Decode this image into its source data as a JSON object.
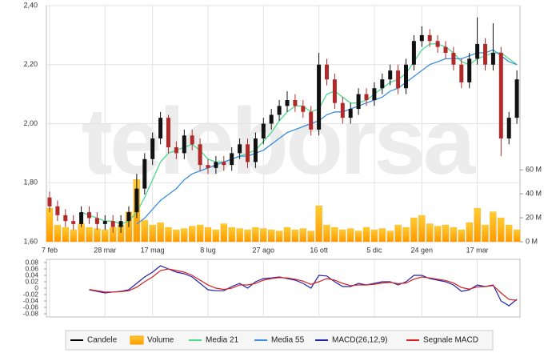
{
  "chart_data": [
    {
      "type": "candlestick",
      "watermark": "teleborsa",
      "categories": [
        "7 feb",
        null,
        null,
        null,
        null,
        null,
        null,
        "28 mar",
        null,
        null,
        null,
        null,
        null,
        "17 mag",
        null,
        null,
        null,
        null,
        null,
        null,
        "8 lug",
        null,
        null,
        null,
        null,
        null,
        null,
        "27 ago",
        null,
        null,
        null,
        null,
        null,
        null,
        "16 ott",
        null,
        null,
        null,
        null,
        null,
        null,
        "5 dic",
        null,
        null,
        null,
        null,
        null,
        "24 gen",
        null,
        null,
        null,
        null,
        null,
        null,
        "17 mar",
        null,
        null,
        null,
        null,
        null
      ],
      "ylim": [
        1.6,
        2.4
      ],
      "yticks": [
        {
          "value": 1.6,
          "label": "1,60"
        },
        {
          "value": 1.8,
          "label": "1,80"
        },
        {
          "value": 2.0,
          "label": "2,00"
        },
        {
          "value": 2.2,
          "label": "2,20"
        },
        {
          "value": 2.4,
          "label": "2,40"
        }
      ],
      "y2lim": [
        0,
        197
      ],
      "y2ticks": [
        {
          "value": 0,
          "label": "0 M"
        },
        {
          "value": 20,
          "label": "20 M"
        },
        {
          "value": 40,
          "label": "40 M"
        },
        {
          "value": 60,
          "label": "60 M"
        }
      ],
      "grid": true,
      "series": [
        {
          "name": "Candele",
          "type": "candlestick",
          "color": "#000000",
          "up_color": "#111111",
          "down_color": "#b02a2a",
          "open": [
            1.75,
            1.72,
            1.69,
            1.67,
            1.66,
            1.7,
            1.68,
            1.66,
            1.67,
            1.65,
            1.67,
            1.7,
            1.78,
            1.88,
            1.95,
            2.02,
            1.92,
            1.9,
            1.96,
            1.93,
            1.86,
            1.85,
            1.87,
            1.86,
            1.9,
            1.93,
            1.87,
            1.95,
            2.0,
            2.03,
            2.06,
            2.08,
            2.06,
            2.04,
            1.98,
            2.2,
            2.15,
            2.07,
            2.02,
            2.05,
            2.1,
            2.08,
            2.12,
            2.15,
            2.18,
            2.12,
            2.2,
            2.28,
            2.3,
            2.28,
            2.26,
            2.24,
            2.2,
            2.14,
            2.22,
            2.27,
            2.2,
            2.24,
            1.95,
            2.02
          ],
          "high": [
            1.77,
            1.74,
            1.71,
            1.69,
            1.72,
            1.72,
            1.7,
            1.69,
            1.69,
            1.69,
            1.72,
            1.83,
            1.9,
            1.97,
            2.04,
            2.03,
            1.94,
            1.98,
            1.98,
            1.95,
            1.88,
            1.89,
            1.89,
            1.92,
            1.95,
            1.95,
            1.97,
            2.02,
            2.05,
            2.08,
            2.11,
            2.1,
            2.08,
            2.06,
            2.24,
            2.22,
            2.17,
            2.09,
            2.07,
            2.12,
            2.12,
            2.14,
            2.17,
            2.2,
            2.2,
            2.22,
            2.3,
            2.33,
            2.32,
            2.3,
            2.28,
            2.26,
            2.22,
            2.24,
            2.36,
            2.29,
            2.34,
            2.26,
            2.04,
            2.18
          ],
          "low": [
            1.7,
            1.67,
            1.65,
            1.64,
            1.65,
            1.66,
            1.64,
            1.64,
            1.63,
            1.63,
            1.65,
            1.68,
            1.76,
            1.86,
            1.93,
            1.9,
            1.88,
            1.88,
            1.91,
            1.84,
            1.83,
            1.83,
            1.84,
            1.84,
            1.88,
            1.85,
            1.85,
            1.93,
            1.98,
            2.01,
            2.04,
            2.04,
            2.02,
            1.96,
            1.96,
            2.13,
            2.05,
            2.0,
            2.0,
            2.03,
            2.06,
            2.06,
            2.1,
            2.13,
            2.1,
            2.1,
            2.18,
            2.26,
            2.26,
            2.24,
            2.22,
            2.18,
            2.12,
            2.12,
            2.2,
            2.18,
            2.18,
            1.89,
            1.93,
            2.0
          ],
          "close": [
            1.72,
            1.69,
            1.67,
            1.66,
            1.7,
            1.68,
            1.66,
            1.67,
            1.65,
            1.67,
            1.7,
            1.78,
            1.88,
            1.95,
            2.02,
            1.92,
            1.9,
            1.96,
            1.93,
            1.86,
            1.85,
            1.87,
            1.86,
            1.9,
            1.93,
            1.87,
            1.95,
            2.0,
            2.03,
            2.06,
            2.08,
            2.06,
            2.04,
            1.98,
            2.2,
            2.15,
            2.07,
            2.02,
            2.05,
            2.1,
            2.08,
            2.12,
            2.15,
            2.18,
            2.12,
            2.2,
            2.28,
            2.3,
            2.28,
            2.26,
            2.24,
            2.2,
            2.14,
            2.22,
            2.27,
            2.2,
            2.24,
            1.95,
            2.02,
            2.15
          ]
        },
        {
          "name": "Volume",
          "type": "bar",
          "axis": "y2",
          "color": "#f5a300",
          "values": [
            28,
            14,
            12,
            10,
            15,
            12,
            11,
            10,
            12,
            14,
            25,
            52,
            18,
            14,
            16,
            12,
            10,
            11,
            13,
            14,
            12,
            10,
            15,
            12,
            11,
            10,
            12,
            11,
            10,
            9,
            12,
            10,
            11,
            9,
            30,
            14,
            12,
            10,
            11,
            9,
            12,
            10,
            11,
            9,
            14,
            12,
            20,
            22,
            15,
            13,
            14,
            12,
            10,
            16,
            28,
            14,
            25,
            20,
            14,
            10
          ]
        },
        {
          "name": "Media 21",
          "type": "line",
          "color": "#4cd98c",
          "values": [
            null,
            null,
            null,
            null,
            1.7,
            1.69,
            1.68,
            1.67,
            1.67,
            1.66,
            1.67,
            1.7,
            1.75,
            1.81,
            1.87,
            1.9,
            1.91,
            1.92,
            1.93,
            1.91,
            1.88,
            1.87,
            1.87,
            1.88,
            1.89,
            1.9,
            1.91,
            1.94,
            1.97,
            2.01,
            2.04,
            2.06,
            2.06,
            2.04,
            2.05,
            2.1,
            2.11,
            2.09,
            2.07,
            2.07,
            2.08,
            2.1,
            2.12,
            2.14,
            2.15,
            2.17,
            2.21,
            2.25,
            2.27,
            2.27,
            2.26,
            2.24,
            2.21,
            2.2,
            2.22,
            2.23,
            2.24,
            2.24,
            2.22,
            2.2
          ]
        },
        {
          "name": "Media 55",
          "type": "line",
          "color": "#3a8ee0",
          "values": [
            null,
            null,
            null,
            null,
            null,
            null,
            null,
            null,
            null,
            null,
            null,
            1.66,
            1.68,
            1.71,
            1.74,
            1.76,
            1.78,
            1.81,
            1.83,
            1.84,
            1.85,
            1.86,
            1.87,
            1.88,
            1.89,
            1.89,
            1.9,
            1.91,
            1.93,
            1.95,
            1.97,
            1.98,
            1.99,
            2.0,
            2.01,
            2.03,
            2.04,
            2.04,
            2.05,
            2.06,
            2.07,
            2.08,
            2.09,
            2.11,
            2.12,
            2.14,
            2.16,
            2.18,
            2.2,
            2.21,
            2.22,
            2.22,
            2.22,
            2.23,
            2.24,
            2.24,
            2.25,
            2.23,
            2.21,
            2.2
          ]
        }
      ]
    },
    {
      "type": "line",
      "ylim": [
        -0.09,
        0.09
      ],
      "yticks": [
        0.08,
        0.06,
        0.04,
        0.02,
        0,
        -0.02,
        -0.04,
        -0.06,
        -0.08
      ],
      "series": [
        {
          "name": "MACD(26,12,9)",
          "color": "#2222aa",
          "values": [
            null,
            null,
            null,
            null,
            null,
            -0.005,
            -0.01,
            -0.015,
            -0.012,
            -0.01,
            -0.005,
            0.015,
            0.035,
            0.05,
            0.07,
            0.06,
            0.05,
            0.045,
            0.035,
            0.015,
            -0.005,
            -0.008,
            -0.008,
            0.005,
            0.015,
            0.0,
            0.02,
            0.03,
            0.032,
            0.035,
            0.03,
            0.025,
            0.015,
            0.0,
            0.04,
            0.038,
            0.02,
            0.005,
            0.005,
            0.015,
            0.01,
            0.015,
            0.02,
            0.02,
            0.01,
            0.02,
            0.04,
            0.04,
            0.03,
            0.025,
            0.02,
            0.01,
            -0.01,
            -0.005,
            0.01,
            0.005,
            0.01,
            -0.04,
            -0.055,
            -0.035
          ]
        },
        {
          "name": "Segnale MACD",
          "color": "#d42020",
          "values": [
            null,
            null,
            null,
            null,
            null,
            -0.004,
            -0.008,
            -0.012,
            -0.012,
            -0.011,
            -0.008,
            0.003,
            0.02,
            0.035,
            0.055,
            0.06,
            0.055,
            0.05,
            0.04,
            0.025,
            0.01,
            0.0,
            -0.004,
            0.0,
            0.01,
            0.01,
            0.015,
            0.025,
            0.03,
            0.033,
            0.032,
            0.028,
            0.022,
            0.012,
            0.02,
            0.03,
            0.025,
            0.015,
            0.008,
            0.01,
            0.01,
            0.012,
            0.016,
            0.018,
            0.014,
            0.016,
            0.028,
            0.035,
            0.032,
            0.028,
            0.024,
            0.016,
            0.002,
            -0.003,
            0.004,
            0.005,
            0.008,
            -0.015,
            -0.035,
            -0.038
          ]
        }
      ]
    }
  ]
}
